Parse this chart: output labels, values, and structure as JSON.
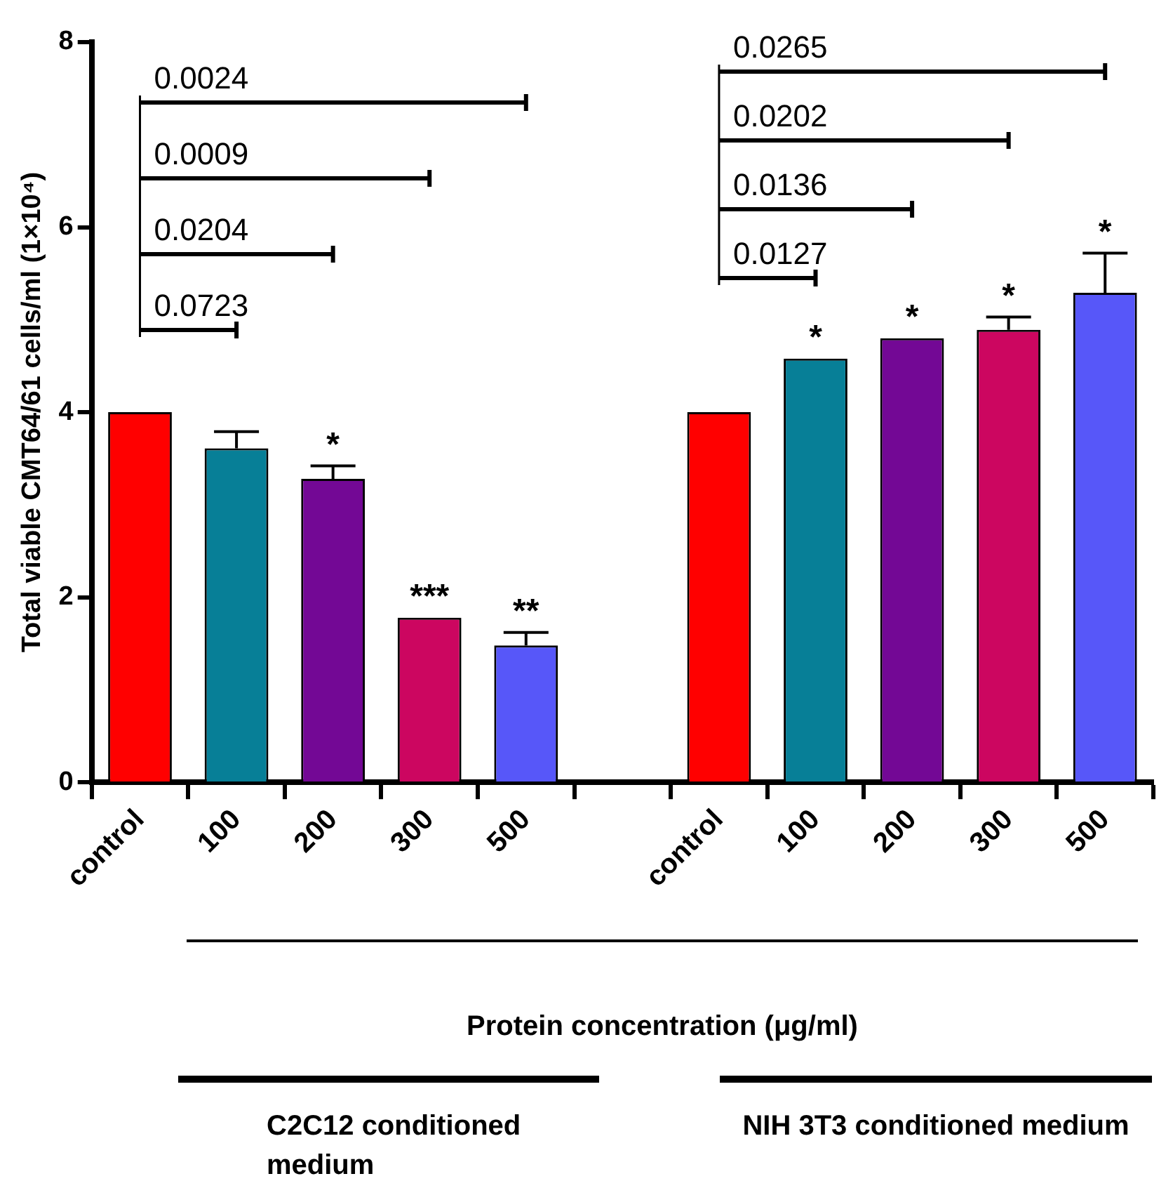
{
  "chart_data": {
    "type": "bar",
    "xlabel": "Protein concentration (μg/ml)",
    "ylabel": "Total viable CMT64/61 cells/ml (1×10⁴)",
    "categories": [
      "control",
      "100",
      "200",
      "300",
      "500",
      null,
      "control",
      "100",
      "200",
      "300",
      "500"
    ],
    "values": [
      4.0,
      3.61,
      3.28,
      1.78,
      1.48,
      null,
      4.0,
      4.58,
      4.8,
      4.89,
      5.29
    ],
    "errors": [
      null,
      0.18,
      0.14,
      null,
      0.14,
      null,
      null,
      null,
      null,
      0.14,
      0.43
    ],
    "value_labels": [
      null,
      null,
      "*",
      "***",
      "**",
      null,
      null,
      "*",
      "*",
      "*",
      "*"
    ],
    "colors": [
      "#ff0000",
      "#077f97",
      "#730895",
      "#cc0660",
      "#5757f9",
      null,
      "#ff0000",
      "#077f97",
      "#730895",
      "#cc0660",
      "#5757f9"
    ],
    "ylim": [
      0,
      8
    ],
    "yticks": [
      0,
      2,
      4,
      6,
      8
    ],
    "grid": false,
    "legend": false,
    "annotations": [
      "0.0723",
      "0.0204",
      "0.0009",
      "0.0024",
      "0.0127",
      "0.0136",
      "0.0202",
      "0.0265",
      "C2C12 conditioned medium",
      "NIH 3T3 conditioned medium"
    ]
  }
}
